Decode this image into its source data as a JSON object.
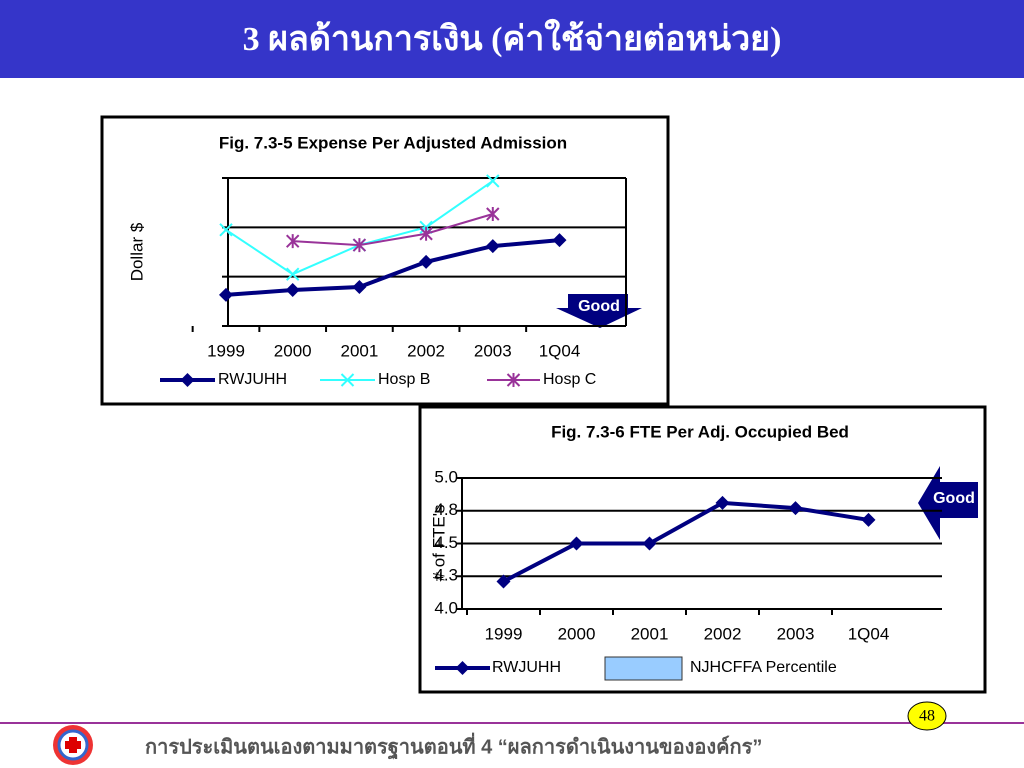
{
  "header": {
    "title": "3 ผลด้านการเงิน (ค่าใช้จ่ายต่อหน่วย)"
  },
  "chart_data": [
    {
      "type": "line",
      "title": "Fig. 7.3-5 Expense Per Adjusted Admission",
      "y_label": "Dollar $",
      "annotation": "Good",
      "categories": [
        "1999",
        "2000",
        "2001",
        "2002",
        "2003",
        "1Q04"
      ],
      "ylim": [
        0,
        3
      ],
      "yticks": [
        0,
        1,
        2,
        3
      ],
      "grid": true,
      "series": [
        {
          "name": "RWJUHH",
          "color": "#000080",
          "marker": "diamond",
          "values": [
            0.63,
            0.73,
            0.79,
            1.3,
            1.62,
            1.74
          ]
        },
        {
          "name": "Hosp B",
          "color": "#33ffff",
          "marker": "x",
          "values": [
            1.95,
            1.05,
            1.64,
            2.0,
            2.94,
            null
          ]
        },
        {
          "name": "Hosp C",
          "color": "#993399",
          "marker": "star",
          "values": [
            null,
            1.72,
            1.64,
            1.87,
            2.27,
            null
          ]
        }
      ]
    },
    {
      "type": "line",
      "title": "Fig. 7.3-6 FTE Per Adj. Occupied Bed",
      "y_label": "# of FTE's",
      "annotation": "Good",
      "categories": [
        "1999",
        "2000",
        "2001",
        "2002",
        "2003",
        "1Q04"
      ],
      "ylim": [
        4.0,
        5.0
      ],
      "yticks": [
        {
          "value": 4.0,
          "label": "4.0"
        },
        {
          "value": 4.25,
          "label": "4.3"
        },
        4.5,
        {
          "value": 4.75,
          "label": "4.8"
        },
        {
          "value": 5.0,
          "label": "5.0"
        }
      ],
      "grid": true,
      "series": [
        {
          "name": "RWJUHH",
          "color": "#000080",
          "marker": "diamond",
          "values": [
            4.21,
            4.5,
            4.5,
            4.81,
            4.77,
            4.68
          ]
        },
        {
          "name": "NJHCFFA Percentile",
          "color": "#99ccff",
          "marker": "box",
          "values": [
            null,
            null,
            null,
            null,
            null,
            null
          ]
        }
      ]
    }
  ],
  "footer": {
    "text": "การประเมินตนเองตามมาตรฐานตอนที่ 4 “ผลการดำเนินงานขององค์กร”",
    "page_number": "48"
  }
}
